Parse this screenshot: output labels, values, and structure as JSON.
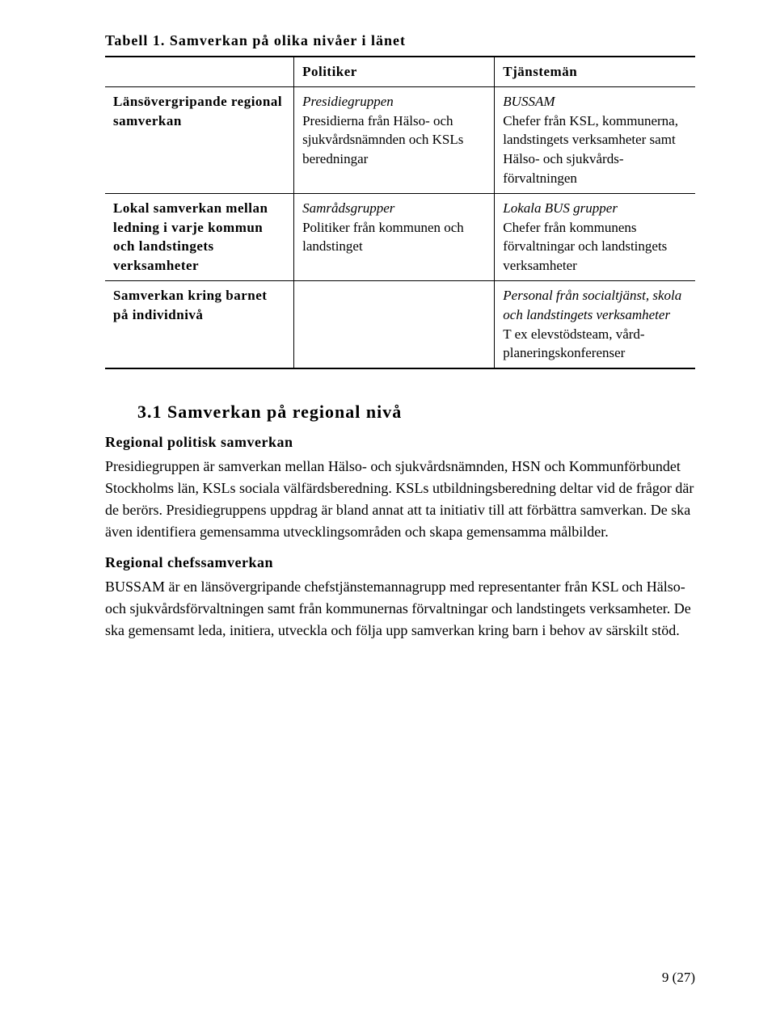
{
  "table": {
    "title": "Tabell 1. Samverkan på olika nivåer i länet",
    "headers": {
      "col2": "Politiker",
      "col3": "Tjänstemän"
    },
    "rows": [
      {
        "col1": "Länsövergripande regional samverkan",
        "col2_italic": "Presidiegruppen",
        "col2_rest": "Presidierna från Hälso- och sjukvårdsnämnden och KSLs beredningar",
        "col3_italic": "BUSSAM",
        "col3_rest": "Chefer från KSL, kommunerna, landstingets verksamheter samt Hälso- och sjukvårds­förvaltningen"
      },
      {
        "col1": "Lokal samverkan mellan ledning i varje kommun och landstingets verksamheter",
        "col2_italic": "Samrådsgrupper",
        "col2_rest": "Politiker från kommunen och landstinget",
        "col3_italic": "Lokala BUS grupper",
        "col3_rest": "Chefer från kommunens förvaltningar och landstingets verksamheter"
      },
      {
        "col1": "Samverkan kring barnet på individnivå",
        "col2_italic": "",
        "col2_rest": "",
        "col3_italic": "Personal från socialtjänst, skola och landstingets verksamheter",
        "col3_rest": "T ex elevstödsteam, vård­planeringskonferenser"
      }
    ]
  },
  "section": {
    "heading": "3.1 Samverkan på regional nivå",
    "sub1": {
      "heading": "Regional politisk samverkan",
      "para": "Presidiegruppen är samverkan mellan Hälso- och sjukvårdsnämnden, HSN och Kommunförbundet Stockholms län, KSLs sociala välfärdsberedning. KSLs utbildningsberedning deltar vid de frågor där de berörs. Presidie­gruppens uppdrag är bland annat att ta initiativ till att förbättra samverkan. De ska även identifiera gemensamma utvecklingsområden och skapa gemensamma målbilder."
    },
    "sub2": {
      "heading": "Regional chefssamverkan",
      "para": "BUSSAM är en länsövergripande chefstjänstemannagrupp med represen­tanter från KSL och Hälso- och sjukvårdsförvaltningen samt från kommunernas förvaltningar och landstingets verksamheter. De ska gemensamt leda, initiera, utveckla och följa upp samverkan kring barn i behov av särskilt stöd."
    }
  },
  "footer": "9 (27)"
}
